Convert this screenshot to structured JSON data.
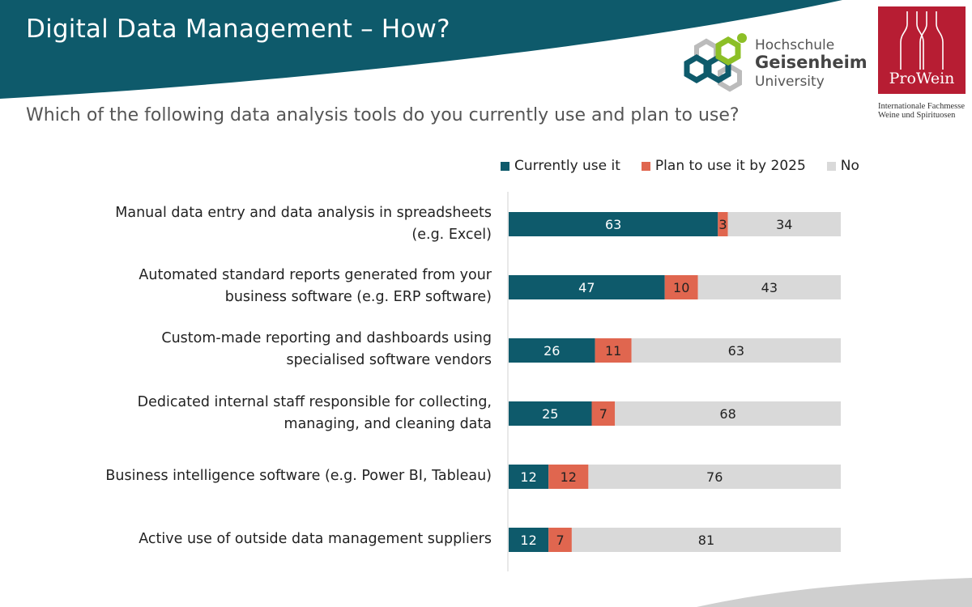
{
  "header": {
    "title": "Digital Data Management – How?",
    "question": "Which of the following data analysis tools do you currently use and plan to use?"
  },
  "logos": {
    "university": {
      "line1": "Hochschule",
      "line2": "Geisenheim",
      "line3": "University"
    },
    "prowein": {
      "name": "ProWein",
      "subtitle_line1": "Internationale Fachmesse",
      "subtitle_line2": "Weine und Spirituosen"
    }
  },
  "colors": {
    "banner": "#0e5a6b",
    "current": "#0e5a6b",
    "plan": "#e0664f",
    "no": "#d9d9d9",
    "prowein": "#b71d33"
  },
  "chart_data": {
    "type": "bar",
    "orientation": "horizontal",
    "stacked": true,
    "categories": [
      "Manual data entry and data analysis in spreadsheets\n(e.g. Excel)",
      "Automated standard reports generated from your\nbusiness software (e.g. ERP software)",
      "Custom-made reporting and dashboards using\nspecialised software vendors",
      "Dedicated internal staff responsible for collecting,\nmanaging, and cleaning data",
      "Business intelligence software (e.g. Power BI, Tableau)",
      "Active use of outside data management suppliers"
    ],
    "series": [
      {
        "name": "Currently use it",
        "color": "#0e5a6b",
        "values": [
          63,
          47,
          26,
          25,
          12,
          12
        ]
      },
      {
        "name": "Plan to use it by 2025",
        "color": "#e0664f",
        "values": [
          3,
          10,
          11,
          7,
          12,
          7
        ]
      },
      {
        "name": "No",
        "color": "#d9d9d9",
        "values": [
          34,
          43,
          63,
          68,
          76,
          81
        ]
      }
    ],
    "legend_position": "top",
    "xlim": [
      0,
      100
    ],
    "grid": false,
    "data_labels": true
  }
}
